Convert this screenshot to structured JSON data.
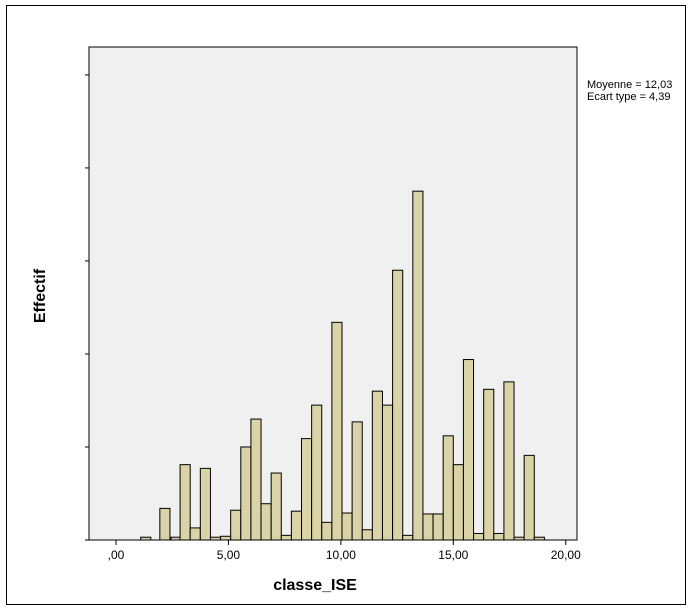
{
  "chart_data": {
    "type": "bar",
    "title": "",
    "xlabel": "classe_ISE",
    "ylabel": "Effectif",
    "xlim": [
      -1.2,
      20.5
    ],
    "ylim": [
      0,
      53
    ],
    "grid": false,
    "y_tick_labels_visible": false,
    "x_tick_values": [
      0,
      5,
      10,
      15,
      20
    ],
    "x_tick_labels": [
      ",00",
      "5,00",
      "10,00",
      "15,00",
      "20,00"
    ],
    "bin_width": 0.45,
    "bin_starts": [
      1.1,
      1.95,
      2.45,
      2.85,
      3.3,
      3.75,
      4.2,
      4.65,
      5.1,
      5.55,
      6.0,
      6.45,
      6.9,
      7.35,
      7.8,
      8.25,
      8.7,
      9.15,
      9.6,
      10.05,
      10.5,
      10.95,
      11.4,
      11.85,
      12.3,
      12.75,
      13.2,
      13.65,
      14.1,
      14.55,
      15.0,
      15.45,
      15.9,
      16.35,
      16.8,
      17.25,
      17.7,
      18.15,
      18.6,
      19.05
    ],
    "values": [
      0.3,
      3.4,
      0.3,
      8.1,
      1.3,
      7.7,
      0.3,
      0.4,
      3.2,
      10.0,
      13.0,
      3.9,
      7.2,
      0.5,
      3.1,
      10.9,
      14.5,
      1.9,
      23.4,
      2.9,
      12.7,
      1.1,
      16.0,
      14.5,
      29.0,
      0.5,
      37.5,
      2.8,
      2.8,
      11.2,
      8.1,
      19.4,
      0.7,
      16.2,
      0.7,
      17.0,
      0.3,
      9.1,
      0.3,
      0.0
    ],
    "legend_text": [
      "Moyenne = 12,03",
      "Ecart type = 4,39"
    ],
    "colors": {
      "bar_fill": "#d9d3a7",
      "bar_stroke": "#000000",
      "plot_bg": "#f0f0f0"
    }
  }
}
